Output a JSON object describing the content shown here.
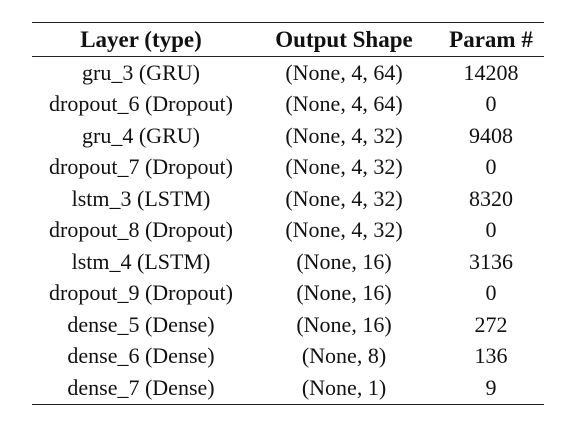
{
  "table": {
    "headers": [
      "Layer (type)",
      "Output Shape",
      "Param #"
    ],
    "rows": [
      [
        "gru_3 (GRU)",
        "(None, 4, 64)",
        "14208"
      ],
      [
        "dropout_6 (Dropout)",
        "(None, 4, 64)",
        "0"
      ],
      [
        "gru_4 (GRU)",
        "(None, 4, 32)",
        "9408"
      ],
      [
        "dropout_7 (Dropout)",
        "(None, 4, 32)",
        "0"
      ],
      [
        "lstm_3 (LSTM)",
        "(None, 4, 32)",
        "8320"
      ],
      [
        "dropout_8 (Dropout)",
        "(None, 4, 32)",
        "0"
      ],
      [
        "lstm_4 (LSTM)",
        "(None, 16)",
        "3136"
      ],
      [
        "dropout_9 (Dropout)",
        "(None, 16)",
        "0"
      ],
      [
        "dense_5 (Dense)",
        "(None, 16)",
        "272"
      ],
      [
        "dense_6 (Dense)",
        "(None, 8)",
        "136"
      ],
      [
        "dense_7 (Dense)",
        "(None, 1)",
        "9"
      ]
    ]
  }
}
